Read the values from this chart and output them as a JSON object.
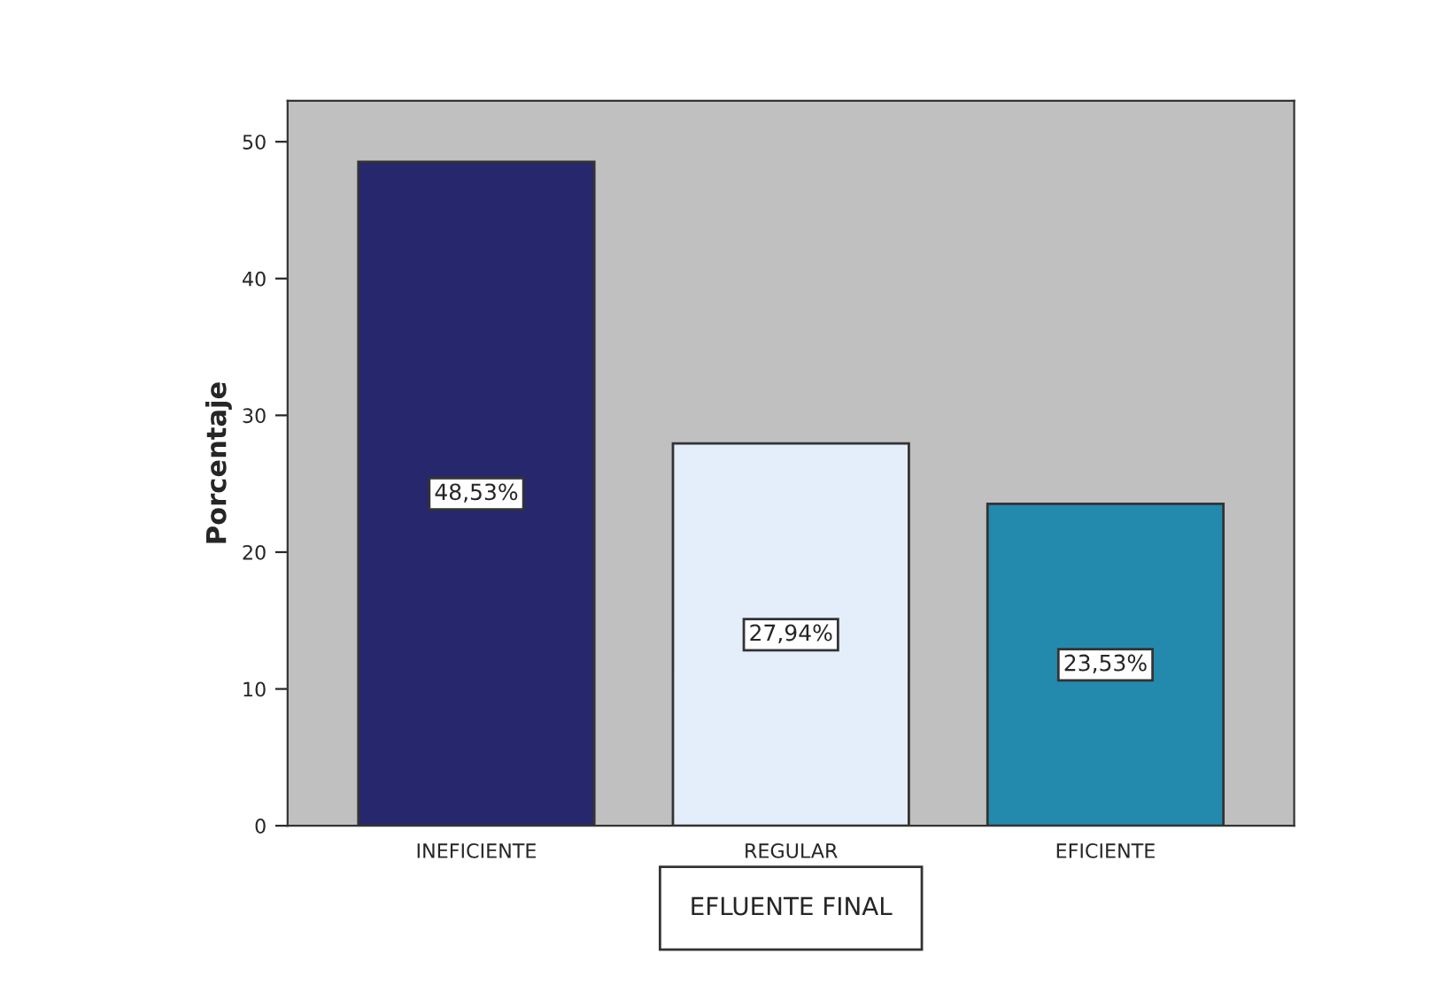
{
  "chart_data": {
    "type": "bar",
    "xlabel": "EFLUENTE FINAL",
    "ylabel": "Porcentaje",
    "categories": [
      "INEFICIENTE",
      "REGULAR",
      "EFICIENTE"
    ],
    "values": [
      48.53,
      27.94,
      23.53
    ],
    "colors": [
      "#27276e",
      "#e3eefa",
      "#238aad"
    ],
    "value_labels": [
      "48,53%",
      "27,94%",
      "23,53%"
    ],
    "ylim": [
      0,
      53
    ],
    "yticks": [
      0,
      10,
      20,
      30,
      40,
      50
    ],
    "grid": false
  }
}
